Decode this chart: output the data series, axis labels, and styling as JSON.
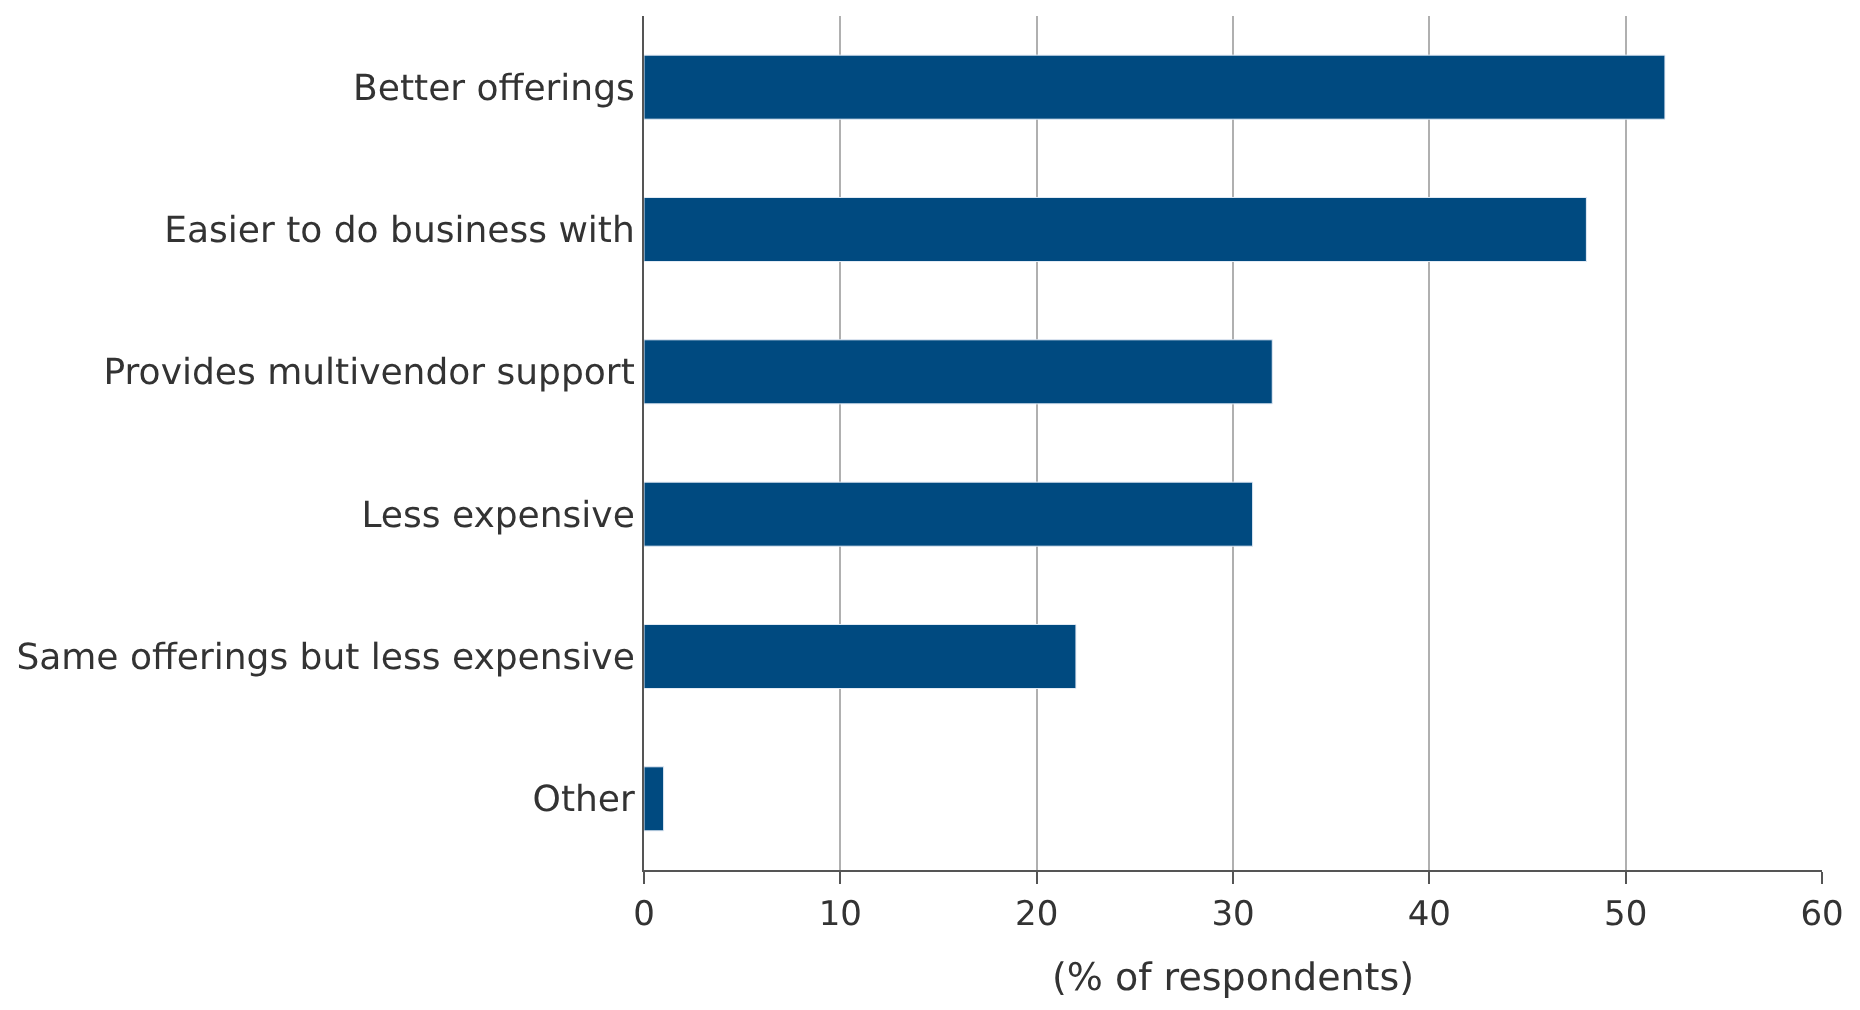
{
  "chart_data": {
    "type": "bar",
    "orientation": "horizontal",
    "categories": [
      "Better offerings",
      "Easier to do business with",
      "Provides multivendor support",
      "Less expensive",
      "Same offerings but less expensive",
      "Other"
    ],
    "values": [
      52,
      48,
      32,
      31,
      22,
      1
    ],
    "color": "#004a80",
    "xlabel": "(% of respondents)",
    "xlim": [
      0,
      60
    ],
    "xticks": [
      0,
      10,
      20,
      30,
      40,
      50,
      60
    ],
    "grid": "x"
  }
}
